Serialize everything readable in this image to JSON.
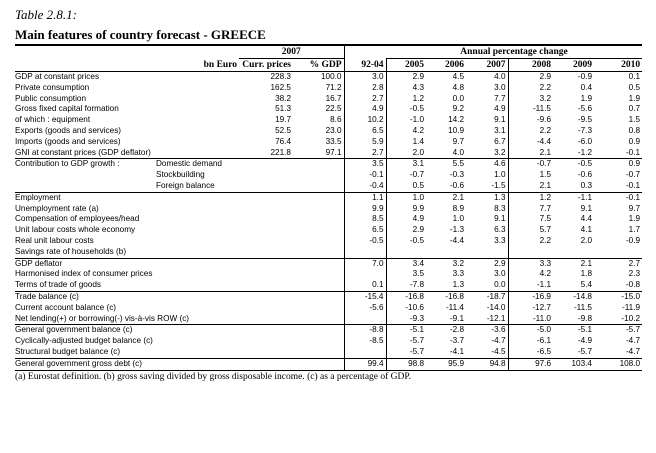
{
  "caption": "Table 2.8.1:",
  "title": "Main features of country forecast - GREECE",
  "header": {
    "group_2007": "2007",
    "group_annual": "Annual percentage change",
    "col_unit": "bn Euro",
    "col_curr": "Curr. prices",
    "col_gdp": "% GDP",
    "years": [
      "92-04",
      "2005",
      "2006",
      "2007",
      "2008",
      "2009",
      "2010"
    ]
  },
  "rows": [
    {
      "label": "GDP at constant prices",
      "sub": "",
      "bn": "228.3",
      "pct": "100.0",
      "v": [
        "3.0",
        "2.9",
        "4.5",
        "4.0",
        "2.9",
        "-0.9",
        "0.1"
      ]
    },
    {
      "label": "Private consumption",
      "sub": "",
      "bn": "162.5",
      "pct": "71.2",
      "v": [
        "2.8",
        "4.3",
        "4.8",
        "3.0",
        "2.2",
        "0.4",
        "0.5"
      ]
    },
    {
      "label": "Public consumption",
      "sub": "",
      "bn": "38.2",
      "pct": "16.7",
      "v": [
        "2.7",
        "1.2",
        "0.0",
        "7.7",
        "3.2",
        "1.9",
        "1.9"
      ]
    },
    {
      "label": "Gross fixed capital formation",
      "sub": "",
      "bn": "51.3",
      "pct": "22.5",
      "v": [
        "4.9",
        "-0.5",
        "9.2",
        "4.9",
        "-11.5",
        "-5.6",
        "0.7"
      ]
    },
    {
      "label": "  of which :   equipment",
      "sub": "",
      "bn": "19.7",
      "pct": "8.6",
      "v": [
        "10.2",
        "-1.0",
        "14.2",
        "9.1",
        "-9.6",
        "-9.5",
        "1.5"
      ]
    },
    {
      "label": "Exports (goods and services)",
      "sub": "",
      "bn": "52.5",
      "pct": "23.0",
      "v": [
        "6.5",
        "4.2",
        "10.9",
        "3.1",
        "2.2",
        "-7.3",
        "0.8"
      ]
    },
    {
      "label": "Imports (goods and services)",
      "sub": "",
      "bn": "76.4",
      "pct": "33.5",
      "v": [
        "5.9",
        "1.4",
        "9.7",
        "6.7",
        "-4.4",
        "-6.0",
        "0.9"
      ]
    },
    {
      "label": "GNI at constant prices (GDP deflator)",
      "sub": "",
      "bn": "221.8",
      "pct": "97.1",
      "v": [
        "2.7",
        "2.0",
        "4.0",
        "3.2",
        "2.1",
        "-1.2",
        "-0.1"
      ]
    },
    {
      "label": "Contribution to GDP growth :",
      "sub": "Domestic demand",
      "bn": "",
      "pct": "",
      "v": [
        "3.5",
        "3.1",
        "5.5",
        "4.6",
        "-0.7",
        "-0.5",
        "0.9"
      ]
    },
    {
      "label": "",
      "sub": "Stockbuilding",
      "bn": "",
      "pct": "",
      "v": [
        "-0.1",
        "-0.7",
        "-0.3",
        "1.0",
        "1.5",
        "-0.6",
        "-0.7"
      ]
    },
    {
      "label": "",
      "sub": "Foreign balance",
      "bn": "",
      "pct": "",
      "v": [
        "-0.4",
        "0.5",
        "-0.6",
        "-1.5",
        "2.1",
        "0.3",
        "-0.1"
      ]
    },
    {
      "label": "Employment",
      "sub": "",
      "bn": "",
      "pct": "",
      "v": [
        "1.1",
        "1.0",
        "2.1",
        "1.3",
        "1.2",
        "-1.1",
        "-0.1"
      ]
    },
    {
      "label": "Unemployment rate (a)",
      "sub": "",
      "bn": "",
      "pct": "",
      "v": [
        "9.9",
        "9.9",
        "8.9",
        "8.3",
        "7.7",
        "9.1",
        "9.7"
      ]
    },
    {
      "label": "Compensation of employees/head",
      "sub": "",
      "bn": "",
      "pct": "",
      "v": [
        "8.5",
        "4.9",
        "1.0",
        "9.1",
        "7.5",
        "4.4",
        "1.9"
      ]
    },
    {
      "label": "Unit labour costs whole economy",
      "sub": "",
      "bn": "",
      "pct": "",
      "v": [
        "6.5",
        "2.9",
        "-1.3",
        "6.3",
        "5.7",
        "4.1",
        "1.7"
      ]
    },
    {
      "label": "Real unit labour costs",
      "sub": "",
      "bn": "",
      "pct": "",
      "v": [
        "-0.5",
        "-0.5",
        "-4.4",
        "3.3",
        "2.2",
        "2.0",
        "-0.9"
      ]
    },
    {
      "label": "Savings rate of households (b)",
      "sub": "",
      "bn": "",
      "pct": "",
      "v": [
        "",
        "",
        "",
        "",
        "",
        "",
        ""
      ]
    },
    {
      "label": "GDP deflator",
      "sub": "",
      "bn": "",
      "pct": "",
      "v": [
        "7.0",
        "3.4",
        "3.2",
        "2.9",
        "3.3",
        "2.1",
        "2.7"
      ]
    },
    {
      "label": "Harmonised index of consumer prices",
      "sub": "",
      "bn": "",
      "pct": "",
      "v": [
        "",
        "3.5",
        "3.3",
        "3.0",
        "4.2",
        "1.8",
        "2.3"
      ]
    },
    {
      "label": "Terms of trade of goods",
      "sub": "",
      "bn": "",
      "pct": "",
      "v": [
        "0.1",
        "-7.8",
        "1.3",
        "0.0",
        "-1.1",
        "5.4",
        "-0.8"
      ]
    },
    {
      "label": "Trade balance (c)",
      "sub": "",
      "bn": "",
      "pct": "",
      "v": [
        "-15.4",
        "-16.8",
        "-16.8",
        "-18.7",
        "-16.9",
        "-14.8",
        "-15.0"
      ]
    },
    {
      "label": "Current account balance (c)",
      "sub": "",
      "bn": "",
      "pct": "",
      "v": [
        "-5.6",
        "-10.6",
        "-11.4",
        "-14.0",
        "-12.7",
        "-11.5",
        "-11.9"
      ]
    },
    {
      "label": "Net lending(+) or borrowing(-) vis-à-vis ROW (c)",
      "sub": "",
      "bn": "",
      "pct": "",
      "v": [
        "",
        "-9.3",
        "-9.1",
        "-12.1",
        "-11.0",
        "-9.8",
        "-10.2"
      ]
    },
    {
      "label": "General government balance (c)",
      "sub": "",
      "bn": "",
      "pct": "",
      "v": [
        "-8.8",
        "-5.1",
        "-2.8",
        "-3.6",
        "-5.0",
        "-5.1",
        "-5.7"
      ]
    },
    {
      "label": "Cyclically-adjusted budget balance (c)",
      "sub": "",
      "bn": "",
      "pct": "",
      "v": [
        "-8.5",
        "-5.7",
        "-3.7",
        "-4.7",
        "-6.1",
        "-4.9",
        "-4.7"
      ]
    },
    {
      "label": "Structural budget balance (c)",
      "sub": "",
      "bn": "",
      "pct": "",
      "v": [
        "",
        "-5.7",
        "-4.1",
        "-4.5",
        "-6.5",
        "-5.7",
        "-4.7"
      ]
    },
    {
      "label": "General government gross debt (c)",
      "sub": "",
      "bn": "",
      "pct": "",
      "v": [
        "99.4",
        "98.8",
        "95.9",
        "94.8",
        "97.6",
        "103.4",
        "108.0"
      ]
    }
  ],
  "footnote": "(a) Eurostat definition.  (b) gross saving divided by gross disposable income.  (c) as a percentage of GDP."
}
